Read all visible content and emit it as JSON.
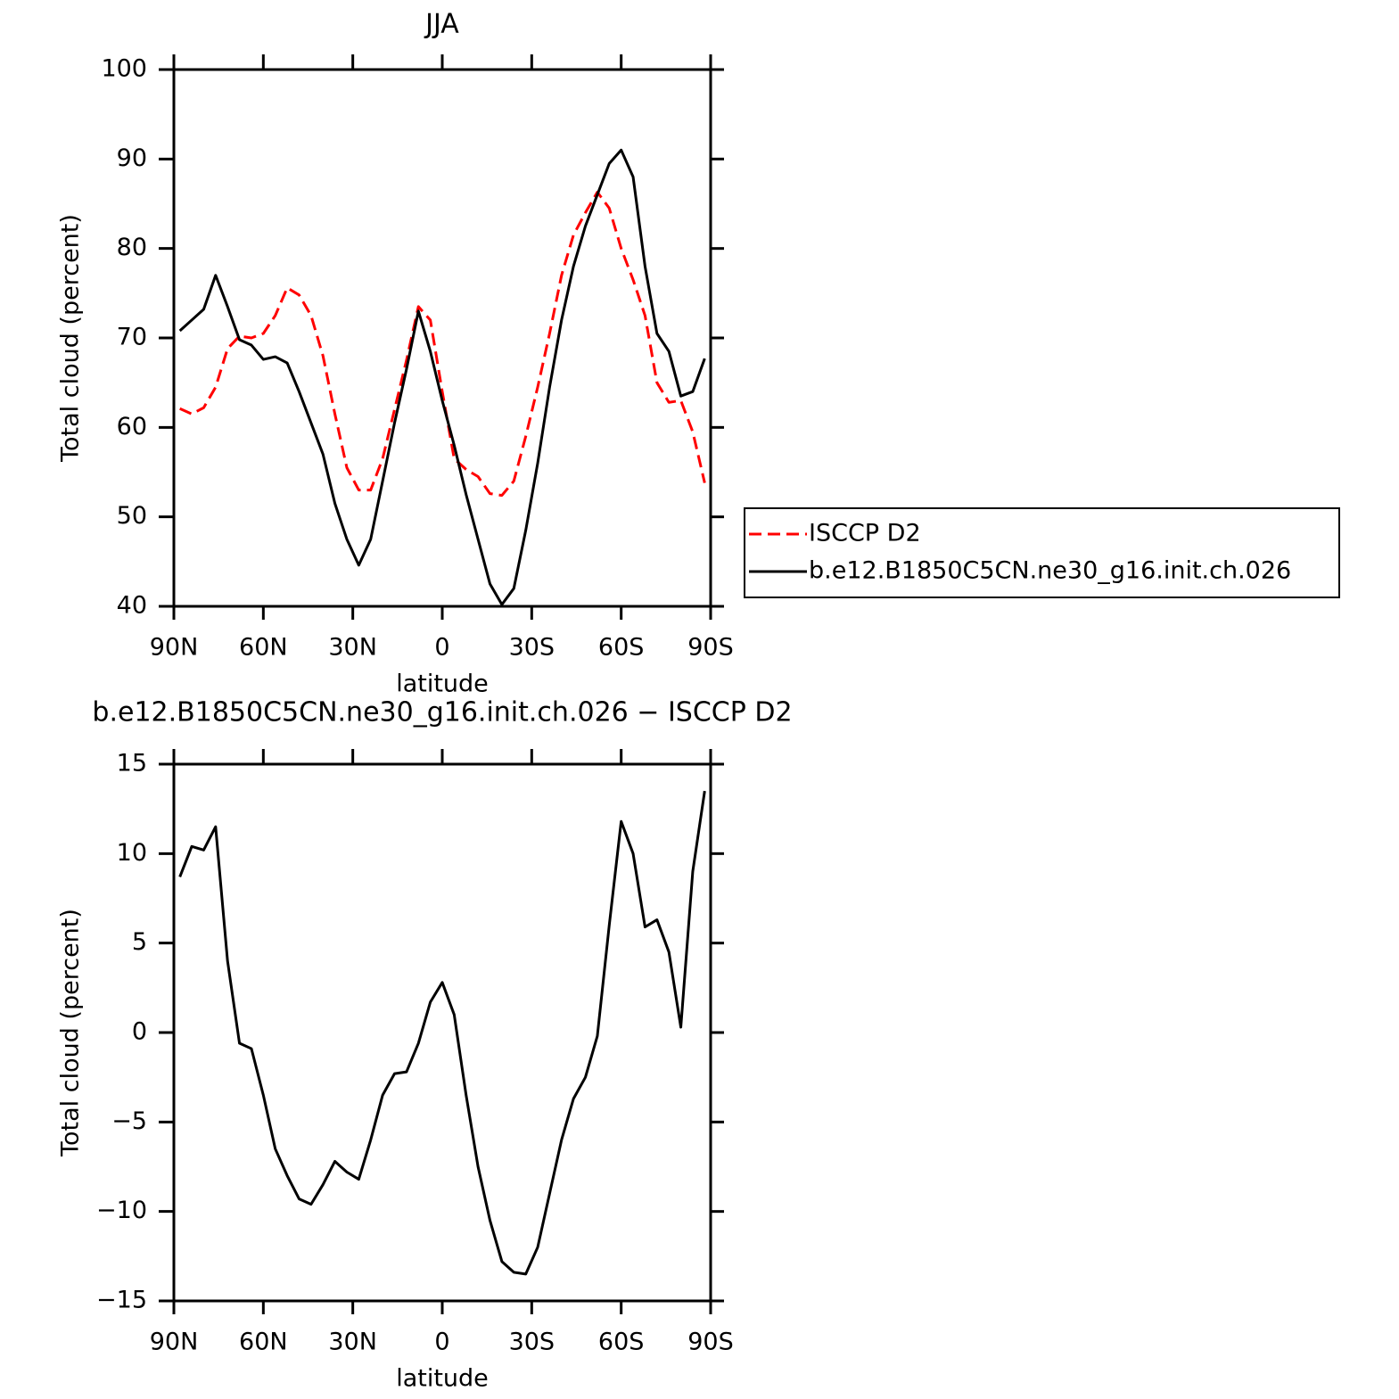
{
  "chart_data": [
    {
      "type": "line",
      "title": "JJA",
      "xlabel": "latitude",
      "ylabel": "Total cloud (percent)",
      "x": [
        88,
        84,
        80,
        76,
        72,
        68,
        64,
        60,
        56,
        52,
        48,
        44,
        40,
        36,
        32,
        28,
        24,
        20,
        16,
        12,
        8,
        4,
        0,
        -4,
        -8,
        -12,
        -16,
        -20,
        -24,
        -28,
        -32,
        -36,
        -40,
        -44,
        -48,
        -52,
        -56,
        -60,
        -64,
        -68,
        -72,
        -76,
        -80,
        -84,
        -88
      ],
      "series": [
        {
          "name": "ISCCP D2",
          "color": "#ff0000",
          "dashed": true,
          "values": [
            62.1,
            61.5,
            62.2,
            64.5,
            68.8,
            70.2,
            70.0,
            70.5,
            72.5,
            75.6,
            74.8,
            72.5,
            68,
            61.5,
            55.5,
            53,
            53,
            56.5,
            62,
            67.5,
            73.5,
            72,
            64,
            56.5,
            55.3,
            54.5,
            52.6,
            52.4,
            54,
            59,
            64.5,
            70.5,
            77,
            81.5,
            84,
            86.3,
            84.5,
            80,
            76.5,
            72.5,
            65,
            62.8,
            63,
            59.5,
            53.8
          ]
        },
        {
          "name": "b.e12.B1850C5CN.ne30_g16.init.ch.026",
          "color": "#000000",
          "dashed": false,
          "values": [
            70.8,
            72.0,
            73.2,
            77.0,
            73.5,
            69.8,
            69.2,
            67.6,
            67.9,
            67.2,
            64.0,
            60.5,
            57,
            51.5,
            47.5,
            44.6,
            47.5,
            54,
            60.5,
            66.5,
            73,
            68.5,
            63,
            58,
            52.5,
            47.5,
            42.5,
            40.2,
            42,
            48.5,
            56,
            64.5,
            72,
            78,
            82.5,
            86,
            89.5,
            91,
            88,
            78,
            70.5,
            68.5,
            63.5,
            64,
            67.7
          ]
        }
      ],
      "xlim": [
        90,
        -90
      ],
      "xticks": [
        {
          "value": 90,
          "label": "90N"
        },
        {
          "value": 60,
          "label": "60N"
        },
        {
          "value": 30,
          "label": "30N"
        },
        0,
        {
          "value": -30,
          "label": "30S"
        },
        {
          "value": -60,
          "label": "60S"
        },
        {
          "value": -90,
          "label": "90S"
        }
      ],
      "ylim": [
        40,
        100
      ],
      "yticks": [
        40,
        50,
        60,
        70,
        80,
        90,
        100
      ],
      "legend": "right"
    },
    {
      "type": "line",
      "title": "b.e12.B1850C5CN.ne30_g16.init.ch.026 − ISCCP D2",
      "xlabel": "latitude",
      "ylabel": "Total cloud (percent)",
      "x": [
        88,
        84,
        80,
        76,
        72,
        68,
        64,
        60,
        56,
        52,
        48,
        44,
        40,
        36,
        32,
        28,
        24,
        20,
        16,
        12,
        8,
        4,
        0,
        -4,
        -8,
        -12,
        -16,
        -20,
        -24,
        -28,
        -32,
        -36,
        -40,
        -44,
        -48,
        -52,
        -56,
        -60,
        -64,
        -68,
        -72,
        -76,
        -80,
        -84,
        -88
      ],
      "series": [
        {
          "color": "#000000",
          "dashed": false,
          "values": [
            8.7,
            10.4,
            10.2,
            11.5,
            4,
            -0.6,
            -0.9,
            -3.5,
            -6.5,
            -8,
            -9.3,
            -9.6,
            -8.5,
            -7.2,
            -7.8,
            -8.2,
            -6,
            -3.5,
            -2.3,
            -2.2,
            -0.6,
            1.7,
            2.8,
            1,
            -3.5,
            -7.5,
            -10.5,
            -12.8,
            -13.4,
            -13.5,
            -12,
            -9,
            -6,
            -3.7,
            -2.5,
            -0.2,
            6,
            11.8,
            10,
            5.9,
            6.3,
            4.5,
            0.3,
            9,
            13.5
          ]
        }
      ],
      "xlim": [
        90,
        -90
      ],
      "xticks": [
        {
          "value": 90,
          "label": "90N"
        },
        {
          "value": 60,
          "label": "60N"
        },
        {
          "value": 30,
          "label": "30N"
        },
        0,
        {
          "value": -30,
          "label": "30S"
        },
        {
          "value": -60,
          "label": "60S"
        },
        {
          "value": -90,
          "label": "90S"
        }
      ],
      "ylim": [
        -15,
        15
      ],
      "yticks": [
        {
          "value": -15,
          "label": "−15"
        },
        {
          "value": -10,
          "label": "−10"
        },
        {
          "value": -5,
          "label": "−5"
        },
        0,
        5,
        10,
        15
      ]
    }
  ]
}
